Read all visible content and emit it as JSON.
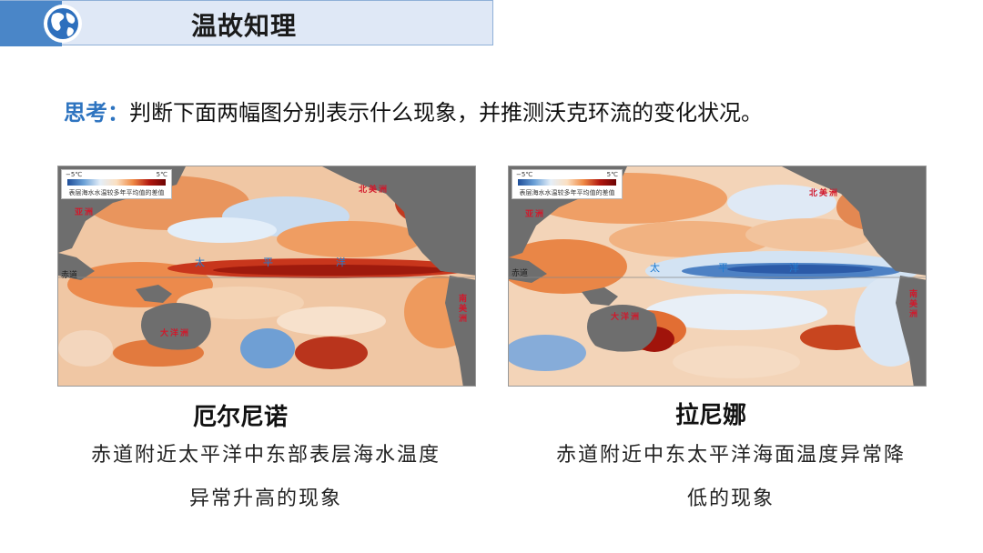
{
  "header": {
    "title": "温故知理",
    "icon": "globe-icon"
  },
  "question": {
    "label": "思考：",
    "text": "判断下面两幅图分别表示什么现象，并推测沃克环流的变化状况。"
  },
  "maps": [
    {
      "legend": {
        "min": "−5℃",
        "max": "5℃",
        "caption": "表层海水水温较多年平均值的差值"
      },
      "labels": {
        "asia": "亚洲",
        "north_america": "北美洲",
        "south_america": "南美洲",
        "oceania": "大洋洲",
        "pacific": [
          "太",
          "平",
          "洋"
        ],
        "equator": "赤道"
      },
      "title": "厄尔尼诺",
      "description": [
        "赤道附近太平洋中东部表层海水温度",
        "异常升高的现象"
      ]
    },
    {
      "legend": {
        "min": "−5℃",
        "max": "5℃",
        "caption": "表层海水水温较多年平均值的差值"
      },
      "labels": {
        "asia": "亚洲",
        "north_america": "北美洲",
        "south_america": "南美洲",
        "oceania": "大洋洲",
        "pacific": [
          "太",
          "平",
          "洋"
        ],
        "equator": "赤道"
      },
      "title": "拉尼娜",
      "description": [
        "赤道附近中东太平洋海面温度异常降",
        "低的现象"
      ]
    }
  ]
}
